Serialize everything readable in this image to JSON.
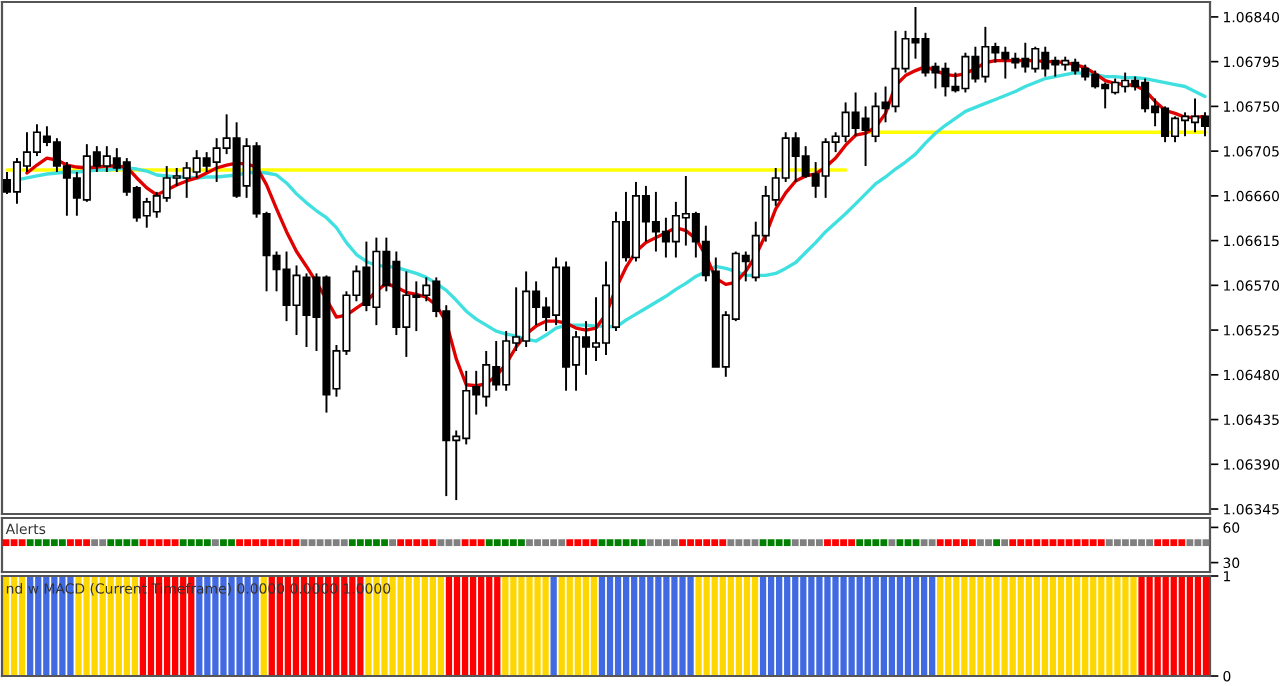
{
  "chart_data": [
    {
      "type": "candlestick",
      "tick_labels": "y",
      "categories": [
        null,
        null,
        null,
        null,
        null,
        null,
        null,
        null,
        null,
        null,
        null,
        null,
        null,
        null,
        null,
        null,
        null,
        null,
        null,
        null,
        null,
        null,
        null,
        null,
        null,
        null,
        null,
        null,
        null,
        null,
        null,
        null,
        null,
        null,
        null,
        null,
        null,
        null,
        null,
        null,
        null,
        null,
        null,
        null,
        null,
        null,
        null,
        null,
        null,
        null,
        null,
        null,
        null,
        null,
        null,
        null,
        null,
        null,
        null,
        null,
        null,
        null,
        null,
        null,
        null,
        null,
        null,
        null,
        null,
        null,
        null,
        null,
        null,
        null,
        null,
        null,
        null,
        null,
        null,
        null,
        null,
        null,
        null,
        null,
        null,
        null,
        null,
        null,
        null,
        null,
        null,
        null,
        null,
        null,
        null,
        null,
        null,
        null,
        null,
        null,
        null,
        null,
        null,
        null,
        null,
        null,
        null,
        null,
        null,
        null,
        null,
        null,
        null,
        null,
        null,
        null,
        null,
        null,
        null,
        null,
        null
      ],
      "ohlc": [
        [
          1.06676,
          1.06684,
          1.06662,
          1.06664
        ],
        [
          1.06664,
          1.06698,
          1.06652,
          1.06694
        ],
        [
          1.0669,
          1.06724,
          1.06684,
          1.06704
        ],
        [
          1.06704,
          1.06732,
          1.067,
          1.06724
        ],
        [
          1.0672,
          1.0673,
          1.0671,
          1.06714
        ],
        [
          1.06714,
          1.06718,
          1.06684,
          1.0669
        ],
        [
          1.0669,
          1.06694,
          1.0664,
          1.06678
        ],
        [
          1.06678,
          1.06684,
          1.0664,
          1.06658
        ],
        [
          1.06656,
          1.06712,
          1.06654,
          1.067
        ],
        [
          1.06704,
          1.0671,
          1.06684,
          1.0669
        ],
        [
          1.0669,
          1.0671,
          1.06684,
          1.067
        ],
        [
          1.06698,
          1.06708,
          1.06684,
          1.06688
        ],
        [
          1.06694,
          1.06698,
          1.0666,
          1.06664
        ],
        [
          1.06668,
          1.0667,
          1.06634,
          1.06638
        ],
        [
          1.0664,
          1.06658,
          1.06628,
          1.06654
        ],
        [
          1.06644,
          1.06664,
          1.06638,
          1.0666
        ],
        [
          1.06658,
          1.0669,
          1.06654,
          1.06678
        ],
        [
          1.06678,
          1.06688,
          1.0667,
          1.0668
        ],
        [
          1.06678,
          1.06694,
          1.06658,
          1.06688
        ],
        [
          1.06684,
          1.06706,
          1.06678,
          1.06698
        ],
        [
          1.06698,
          1.06704,
          1.06684,
          1.0669
        ],
        [
          1.06694,
          1.06718,
          1.06674,
          1.06708
        ],
        [
          1.06708,
          1.06742,
          1.06702,
          1.06718
        ],
        [
          1.06718,
          1.06734,
          1.06658,
          1.0666
        ],
        [
          1.0667,
          1.06718,
          1.06658,
          1.0671
        ],
        [
          1.0671,
          1.06714,
          1.06638,
          1.06642
        ],
        [
          1.06642,
          1.06644,
          1.06564,
          1.066
        ],
        [
          1.066,
          1.06604,
          1.06564,
          1.06586
        ],
        [
          1.06586,
          1.06604,
          1.06534,
          1.0655
        ],
        [
          1.0655,
          1.0659,
          1.0652,
          1.0658
        ],
        [
          1.06578,
          1.06582,
          1.06508,
          1.0654
        ],
        [
          1.06578,
          1.06582,
          1.06504,
          1.06538
        ],
        [
          1.06578,
          1.0658,
          1.06442,
          1.0646
        ],
        [
          1.06466,
          1.0651,
          1.06458,
          1.06504
        ],
        [
          1.06504,
          1.06564,
          1.065,
          1.0656
        ],
        [
          1.0656,
          1.0659,
          1.06554,
          1.06584
        ],
        [
          1.06588,
          1.06614,
          1.06544,
          1.0655
        ],
        [
          1.06548,
          1.06618,
          1.0653,
          1.06604
        ],
        [
          1.06604,
          1.06618,
          1.06564,
          1.0657
        ],
        [
          1.06594,
          1.06604,
          1.0652,
          1.06528
        ],
        [
          1.06528,
          1.06584,
          1.06498,
          1.0656
        ],
        [
          1.0656,
          1.06574,
          1.06524,
          1.06558
        ],
        [
          1.0656,
          1.06578,
          1.06554,
          1.0657
        ],
        [
          1.06574,
          1.06578,
          1.06538,
          1.06544
        ],
        [
          1.06544,
          1.0655,
          1.06358,
          1.06414
        ],
        [
          1.06414,
          1.06424,
          1.06354,
          1.06418
        ],
        [
          1.06416,
          1.06484,
          1.0641,
          1.06464
        ],
        [
          1.06468,
          1.06484,
          1.0644,
          1.0646
        ],
        [
          1.06458,
          1.06504,
          1.06448,
          1.0649
        ],
        [
          1.06488,
          1.06514,
          1.06464,
          1.0647
        ],
        [
          1.0647,
          1.06524,
          1.06464,
          1.06514
        ],
        [
          1.06512,
          1.06568,
          1.06504,
          1.06518
        ],
        [
          1.06514,
          1.06584,
          1.06508,
          1.06564
        ],
        [
          1.06564,
          1.06574,
          1.0653,
          1.06548
        ],
        [
          1.06548,
          1.06558,
          1.06524,
          1.06538
        ],
        [
          1.0654,
          1.06598,
          1.0653,
          1.06588
        ],
        [
          1.06588,
          1.06594,
          1.06464,
          1.06488
        ],
        [
          1.0649,
          1.06524,
          1.06464,
          1.06518
        ],
        [
          1.06518,
          1.06534,
          1.0648,
          1.06508
        ],
        [
          1.06508,
          1.06558,
          1.06494,
          1.06512
        ],
        [
          1.06512,
          1.06594,
          1.065,
          1.0657
        ],
        [
          1.06528,
          1.06644,
          1.06524,
          1.06634
        ],
        [
          1.06634,
          1.06664,
          1.06594,
          1.06598
        ],
        [
          1.06598,
          1.06674,
          1.06594,
          1.0666
        ],
        [
          1.0666,
          1.0667,
          1.06614,
          1.06634
        ],
        [
          1.06634,
          1.06664,
          1.06604,
          1.06624
        ],
        [
          1.06624,
          1.06638,
          1.06598,
          1.06614
        ],
        [
          1.06614,
          1.06654,
          1.06598,
          1.0664
        ],
        [
          1.06638,
          1.0668,
          1.0661,
          1.06642
        ],
        [
          1.06642,
          1.06644,
          1.06598,
          1.06614
        ],
        [
          1.06614,
          1.0663,
          1.06574,
          1.0658
        ],
        [
          1.06584,
          1.06598,
          1.06488,
          1.06488
        ],
        [
          1.06488,
          1.06544,
          1.06478,
          1.0654
        ],
        [
          1.06536,
          1.06604,
          1.06534,
          1.06602
        ],
        [
          1.066,
          1.06604,
          1.06574,
          1.06594
        ],
        [
          1.06578,
          1.06634,
          1.06574,
          1.0662
        ],
        [
          1.0662,
          1.0667,
          1.06614,
          1.0666
        ],
        [
          1.06656,
          1.06688,
          1.0665,
          1.06678
        ],
        [
          1.06678,
          1.06724,
          1.06674,
          1.06718
        ],
        [
          1.06718,
          1.06724,
          1.06674,
          1.067
        ],
        [
          1.067,
          1.0671,
          1.06678,
          1.0668
        ],
        [
          1.06682,
          1.06694,
          1.06658,
          1.0667
        ],
        [
          1.0668,
          1.06718,
          1.06658,
          1.06714
        ],
        [
          1.06714,
          1.06724,
          1.06704,
          1.0672
        ],
        [
          1.0672,
          1.06754,
          1.06714,
          1.06744
        ],
        [
          1.06744,
          1.06764,
          1.0672,
          1.06728
        ],
        [
          1.06738,
          1.0675,
          1.0669,
          1.06726
        ],
        [
          1.0672,
          1.06764,
          1.06714,
          1.0675
        ],
        [
          1.06754,
          1.0677,
          1.06734,
          1.06748
        ],
        [
          1.0675,
          1.06826,
          1.06744,
          1.06788
        ],
        [
          1.06788,
          1.06826,
          1.06784,
          1.06818
        ],
        [
          1.06818,
          1.0685,
          1.06798,
          1.06814
        ],
        [
          1.06818,
          1.06824,
          1.0678,
          1.06784
        ],
        [
          1.0679,
          1.06794,
          1.06768,
          1.06784
        ],
        [
          1.06788,
          1.06794,
          1.0676,
          1.0677
        ],
        [
          1.0677,
          1.06784,
          1.06764,
          1.06766
        ],
        [
          1.06768,
          1.06804,
          1.06764,
          1.068
        ],
        [
          1.068,
          1.0681,
          1.06774,
          1.06778
        ],
        [
          1.0678,
          1.0683,
          1.06774,
          1.0681
        ],
        [
          1.0681,
          1.06814,
          1.06794,
          1.06804
        ],
        [
          1.06804,
          1.0681,
          1.06778,
          1.06798
        ],
        [
          1.06798,
          1.06804,
          1.06788,
          1.06794
        ],
        [
          1.06798,
          1.06814,
          1.06784,
          1.0679
        ],
        [
          1.06788,
          1.0681,
          1.06784,
          1.06808
        ],
        [
          1.06804,
          1.0681,
          1.0678,
          1.06788
        ],
        [
          1.06796,
          1.068,
          1.0678,
          1.06792
        ],
        [
          1.06792,
          1.068,
          1.06786,
          1.06796
        ],
        [
          1.06794,
          1.06798,
          1.06782,
          1.06786
        ],
        [
          1.06788,
          1.06792,
          1.06776,
          1.0678
        ],
        [
          1.06782,
          1.06786,
          1.06768,
          1.0677
        ],
        [
          1.06772,
          1.06774,
          1.06748,
          1.06768
        ],
        [
          1.06764,
          1.06778,
          1.06762,
          1.06774
        ],
        [
          1.0677,
          1.06784,
          1.06764,
          1.06776
        ],
        [
          1.06776,
          1.0678,
          1.06766,
          1.0677
        ],
        [
          1.06774,
          1.06778,
          1.06744,
          1.06748
        ],
        [
          1.0675,
          1.06758,
          1.0673,
          1.06744
        ],
        [
          1.06748,
          1.0675,
          1.06714,
          1.0672
        ],
        [
          1.0672,
          1.0674,
          1.06714,
          1.06738
        ],
        [
          1.06736,
          1.06744,
          1.0672,
          1.0674
        ],
        [
          1.06734,
          1.06758,
          1.06724,
          1.0674
        ],
        [
          1.0674,
          1.06744,
          1.0672,
          1.0673
        ]
      ],
      "series": [
        {
          "type": "line",
          "color": "#ffff00",
          "values": [
            1.06686,
            1.06686,
            1.06686,
            1.06686,
            1.06686,
            1.06686,
            1.06686,
            1.06686,
            1.06686,
            1.06686,
            1.06686,
            1.06686,
            1.06686,
            1.06686,
            1.06686,
            1.06686,
            1.06686,
            1.06686,
            1.06686,
            1.06686,
            1.06686,
            1.06686,
            1.06686,
            1.06686,
            1.06686,
            1.06686,
            1.06686,
            1.06686,
            1.06686,
            1.06686,
            1.06686,
            1.06686,
            1.06686,
            1.06686,
            1.06686,
            1.06686,
            1.06686,
            1.06686,
            1.06686,
            1.06686,
            1.06686,
            1.06686,
            1.06686,
            1.06686,
            1.06686,
            1.06686,
            1.06686,
            1.06686,
            1.06686,
            1.06686,
            1.06686,
            1.06686,
            1.06686,
            1.06686,
            1.06686,
            1.06686,
            1.06686,
            1.06686,
            1.06686,
            1.06686,
            1.06686,
            1.06686,
            1.06686,
            1.06686,
            1.06686,
            1.06686,
            1.06686,
            1.06686,
            1.06686,
            1.06686,
            1.06686,
            1.06686,
            1.06686,
            1.06686,
            1.06686,
            1.06686,
            1.06686,
            1.06686,
            1.06686,
            1.06686,
            1.06686,
            1.06686,
            1.06686,
            1.06686,
            1.06686,
            null,
            null,
            null,
            null,
            null,
            null,
            null,
            null,
            null,
            null,
            null,
            null,
            null,
            null,
            null,
            null,
            null,
            null,
            null,
            null,
            null,
            null,
            null,
            null,
            null,
            null,
            null,
            null,
            null,
            null,
            null,
            null,
            null,
            null,
            null,
            null
          ]
        },
        {
          "type": "line",
          "color": "#ffff00",
          "values": [
            null,
            null,
            null,
            null,
            null,
            null,
            null,
            null,
            null,
            null,
            null,
            null,
            null,
            null,
            null,
            null,
            null,
            null,
            null,
            null,
            null,
            null,
            null,
            null,
            null,
            null,
            null,
            null,
            null,
            null,
            null,
            null,
            null,
            null,
            null,
            null,
            null,
            null,
            null,
            null,
            null,
            null,
            null,
            null,
            null,
            null,
            null,
            null,
            null,
            null,
            null,
            null,
            null,
            null,
            null,
            null,
            null,
            null,
            null,
            null,
            null,
            null,
            null,
            null,
            null,
            null,
            null,
            null,
            null,
            null,
            null,
            null,
            null,
            null,
            null,
            null,
            null,
            null,
            null,
            null,
            null,
            null,
            null,
            null,
            null,
            null,
            1.06724,
            1.06724,
            1.06724,
            1.06724,
            1.06724,
            1.06724,
            1.06724,
            1.06724,
            1.06724,
            1.06724,
            1.06724,
            1.06724,
            1.06724,
            1.06724,
            1.06724,
            1.06724,
            1.06724,
            1.06724,
            1.06724,
            1.06724,
            1.06724,
            1.06724,
            1.06724,
            1.06724,
            1.06724,
            1.06724,
            1.06724,
            1.06724,
            1.06724,
            1.06724,
            1.06724,
            1.06724,
            1.06724,
            1.06724,
            1.06724
          ]
        },
        {
          "type": "line",
          "color": "#40e0e0",
          "values": [
            null,
            1.06676,
            1.06678,
            1.0668,
            1.06682,
            1.06683,
            1.06684,
            1.06684,
            1.06685,
            1.06686,
            1.06686,
            1.06687,
            1.06688,
            1.06687,
            1.06685,
            1.06681,
            1.0668,
            1.06679,
            1.06679,
            1.06678,
            1.06679,
            1.06679,
            1.0668,
            1.06681,
            1.06683,
            1.06684,
            1.06683,
            1.06681,
            1.06673,
            1.06662,
            1.06653,
            1.06645,
            1.06638,
            1.06628,
            1.06613,
            1.06601,
            1.06594,
            1.0659,
            1.06589,
            1.06588,
            1.06585,
            1.06582,
            1.06578,
            1.06572,
            1.06565,
            1.06555,
            1.06544,
            1.06536,
            1.0653,
            1.06524,
            1.06521,
            1.06519,
            1.06516,
            1.06514,
            1.0652,
            1.06527,
            1.0653,
            1.0653,
            1.0653,
            1.06529,
            1.06529,
            1.06528,
            1.06535,
            1.06541,
            1.06547,
            1.06553,
            1.06559,
            1.06566,
            1.06572,
            1.06579,
            1.06584,
            1.06589,
            1.06587,
            1.06584,
            1.0658,
            1.0658,
            1.0658,
            1.06582,
            1.06587,
            1.06593,
            1.06603,
            1.06613,
            1.06624,
            1.06633,
            1.06642,
            1.06652,
            1.06662,
            1.06672,
            1.06679,
            1.06687,
            1.06694,
            1.06702,
            1.06713,
            1.06723,
            1.06731,
            1.06738,
            1.06745,
            1.06749,
            1.06753,
            1.06757,
            1.06761,
            1.06765,
            1.0677,
            1.06774,
            1.06778,
            1.0678,
            1.06782,
            1.06784,
            1.06783,
            1.06782,
            1.0678,
            1.0678,
            1.06779,
            1.06779,
            1.06778,
            1.06776,
            1.06774,
            1.06772,
            1.0677,
            1.06765,
            1.0676
          ]
        },
        {
          "type": "line",
          "color": "#e00000",
          "values": [
            null,
            null,
            1.06683,
            1.06691,
            1.06698,
            1.06696,
            1.06691,
            1.06689,
            1.06688,
            1.06689,
            1.0669,
            1.0669,
            1.06689,
            1.06678,
            1.06668,
            1.06661,
            1.06666,
            1.06671,
            1.06675,
            1.06678,
            1.06683,
            1.06688,
            1.06691,
            1.06693,
            1.06692,
            1.06689,
            1.06671,
            1.06647,
            1.06624,
            1.06604,
            1.06589,
            1.06573,
            1.06556,
            1.06538,
            1.0654,
            1.06547,
            1.06554,
            1.06564,
            1.06572,
            1.06568,
            1.06563,
            1.06561,
            1.06558,
            1.0655,
            1.06533,
            1.06496,
            1.0647,
            1.06469,
            1.06471,
            1.06479,
            1.06491,
            1.06508,
            1.06521,
            1.06529,
            1.06534,
            1.06534,
            1.06532,
            1.06527,
            1.06525,
            1.06527,
            1.06541,
            1.06567,
            1.06588,
            1.06604,
            1.06613,
            1.06618,
            1.06623,
            1.06628,
            1.06625,
            1.06617,
            1.066,
            1.06577,
            1.06571,
            1.06573,
            1.06584,
            1.066,
            1.06621,
            1.06647,
            1.06663,
            1.06675,
            1.0668,
            1.06682,
            1.06689,
            1.06698,
            1.06711,
            1.06721,
            1.06723,
            1.06729,
            1.06743,
            1.06771,
            1.06781,
            1.06786,
            1.0679,
            1.06786,
            1.06782,
            1.06781,
            1.06783,
            1.06788,
            1.06794,
            1.06796,
            1.06796,
            1.06796,
            1.06796,
            1.06796,
            1.06795,
            1.06795,
            1.06794,
            1.06792,
            1.06789,
            1.06783,
            1.06776,
            1.06773,
            1.06772,
            1.06771,
            1.06766,
            1.06755,
            1.06746,
            1.06743,
            1.06739,
            1.06739,
            1.0674
          ]
        }
      ],
      "ylim": [
        1.0634,
        1.06855
      ],
      "yticks": [
        1.06345,
        {
          "value": 1.0639,
          "label": "1.06390"
        },
        1.06435,
        {
          "value": 1.0648,
          "label": "1.06480"
        },
        1.06525,
        {
          "value": 1.0657,
          "label": "1.06570"
        },
        1.06615,
        {
          "value": 1.0666,
          "label": "1.06660"
        },
        1.06705,
        {
          "value": 1.0675,
          "label": "1.06750"
        },
        1.06795,
        {
          "value": 1.0684,
          "label": "1.06840"
        }
      ]
    },
    {
      "type": "scatter",
      "title": "Alerts",
      "marker": "square",
      "tick_labels": "y",
      "categories": [
        null,
        null,
        null,
        null,
        null,
        null,
        null,
        null,
        null,
        null,
        null,
        null,
        null,
        null,
        null,
        null,
        null,
        null,
        null,
        null,
        null,
        null,
        null,
        null,
        null,
        null,
        null,
        null,
        null,
        null,
        null,
        null,
        null,
        null,
        null,
        null,
        null,
        null,
        null,
        null,
        null,
        null,
        null,
        null,
        null,
        null,
        null,
        null,
        null,
        null,
        null,
        null,
        null,
        null,
        null,
        null,
        null,
        null,
        null,
        null,
        null,
        null,
        null,
        null,
        null,
        null,
        null,
        null,
        null,
        null,
        null,
        null,
        null,
        null,
        null,
        null,
        null,
        null,
        null,
        null,
        null,
        null,
        null,
        null,
        null,
        null,
        null,
        null,
        null,
        null,
        null,
        null,
        null,
        null,
        null,
        null,
        null,
        null,
        null,
        null,
        null,
        null,
        null,
        null,
        null,
        null,
        null,
        null,
        null,
        null,
        null,
        null,
        null,
        null,
        null,
        null,
        null,
        null,
        null,
        null,
        null,
        null,
        null,
        null,
        null,
        null,
        null,
        null,
        null,
        null,
        null,
        null,
        null,
        null,
        null,
        null,
        null,
        null,
        null,
        null,
        null,
        null,
        null,
        null,
        null,
        null,
        null,
        null,
        null,
        null
      ],
      "values": [
        47,
        47,
        47,
        47,
        47,
        47,
        47,
        47,
        47,
        47,
        47,
        47,
        47,
        47,
        47,
        47,
        47,
        47,
        47,
        47,
        47,
        47,
        47,
        47,
        47,
        47,
        47,
        47,
        47,
        47,
        47,
        47,
        47,
        47,
        47,
        47,
        47,
        47,
        47,
        47,
        47,
        47,
        47,
        47,
        47,
        47,
        47,
        47,
        47,
        47,
        47,
        47,
        47,
        47,
        47,
        47,
        47,
        47,
        47,
        47,
        47,
        47,
        47,
        47,
        47,
        47,
        47,
        47,
        47,
        47,
        47,
        47,
        47,
        47,
        47,
        47,
        47,
        47,
        47,
        47,
        47,
        47,
        47,
        47,
        47,
        47,
        47,
        47,
        47,
        47,
        47,
        47,
        47,
        47,
        47,
        47,
        47,
        47,
        47,
        47,
        47,
        47,
        47,
        47,
        47,
        47,
        47,
        47,
        47,
        47,
        47,
        47,
        47,
        47,
        47,
        47,
        47,
        47,
        47,
        47,
        47,
        47,
        47,
        47,
        47,
        47,
        47,
        47,
        47,
        47,
        47,
        47,
        47,
        47,
        47,
        47,
        47,
        47,
        47,
        47,
        47,
        47,
        47,
        47,
        47,
        47,
        47,
        47,
        47,
        47
      ],
      "colors": [
        "#ff0000",
        "#ff0000",
        "#ff0000",
        "#008000",
        "#008000",
        "#008000",
        "#008000",
        "#008000",
        "#ff0000",
        "#ff0000",
        "#ff0000",
        "#808080",
        "#808080",
        "#008000",
        "#008000",
        "#008000",
        "#008000",
        "#ff0000",
        "#ff0000",
        "#ff0000",
        "#ff0000",
        "#ff0000",
        "#008000",
        "#008000",
        "#008000",
        "#008000",
        "#808080",
        "#008000",
        "#008000",
        "#ff0000",
        "#ff0000",
        "#ff0000",
        "#ff0000",
        "#ff0000",
        "#ff0000",
        "#ff0000",
        "#ff0000",
        "#808080",
        "#808080",
        "#808080",
        "#808080",
        "#808080",
        "#808080",
        "#008000",
        "#008000",
        "#008000",
        "#008000",
        "#008000",
        "#808080",
        "#ff0000",
        "#ff0000",
        "#ff0000",
        "#ff0000",
        "#ff0000",
        "#808080",
        "#808080",
        "#808080",
        "#ff0000",
        "#ff0000",
        "#ff0000",
        "#008000",
        "#008000",
        "#008000",
        "#008000",
        "#008000",
        "#808080",
        "#808080",
        "#808080",
        "#808080",
        "#808080",
        "#ff0000",
        "#ff0000",
        "#ff0000",
        "#ff0000",
        "#008000",
        "#008000",
        "#008000",
        "#008000",
        "#008000",
        "#008000",
        "#808080",
        "#808080",
        "#808080",
        "#808080",
        "#ff0000",
        "#ff0000",
        "#ff0000",
        "#ff0000",
        "#ff0000",
        "#ff0000",
        "#808080",
        "#808080",
        "#808080",
        "#808080",
        "#008000",
        "#008000",
        "#008000",
        "#008000",
        "#808080",
        "#808080",
        "#808080",
        "#808080",
        "#ff0000",
        "#ff0000",
        "#ff0000",
        "#ff0000",
        "#008000",
        "#008000",
        "#008000",
        "#008000",
        "#808080",
        "#008000",
        "#008000",
        "#008000",
        "#808080",
        "#808080",
        "#ff0000",
        "#ff0000",
        "#ff0000",
        "#ff0000",
        "#ff0000",
        "#808080",
        "#808080",
        "#008000",
        "#808080",
        "#ff0000",
        "#ff0000",
        "#ff0000",
        "#ff0000",
        "#ff0000",
        "#ff0000",
        "#ff0000",
        "#ff0000",
        "#ff0000",
        "#ff0000",
        "#ff0000",
        "#ff0000",
        "#808080",
        "#808080",
        "#808080",
        "#808080",
        "#808080",
        "#808080",
        "#ff0000",
        "#ff0000",
        "#ff0000",
        "#ff0000",
        "#808080",
        "#808080",
        "#808080"
      ],
      "ylim": [
        22,
        68
      ],
      "yticks": [
        30,
        60
      ]
    },
    {
      "type": "bar",
      "tick_labels": "y",
      "annotations": [
        "nd w MACD (Current Timeframe) 0.0000 0.0000 1.0000"
      ],
      "categories": [
        null,
        null,
        null,
        null,
        null,
        null,
        null,
        null,
        null,
        null,
        null,
        null,
        null,
        null,
        null,
        null,
        null,
        null,
        null,
        null,
        null,
        null,
        null,
        null,
        null,
        null,
        null,
        null,
        null,
        null,
        null,
        null,
        null,
        null,
        null,
        null,
        null,
        null,
        null,
        null,
        null,
        null,
        null,
        null,
        null,
        null,
        null,
        null,
        null,
        null,
        null,
        null,
        null,
        null,
        null,
        null,
        null,
        null,
        null,
        null,
        null,
        null,
        null,
        null,
        null,
        null,
        null,
        null,
        null,
        null,
        null,
        null,
        null,
        null,
        null,
        null,
        null,
        null,
        null,
        null,
        null,
        null,
        null,
        null,
        null,
        null,
        null,
        null,
        null,
        null,
        null,
        null,
        null,
        null,
        null,
        null,
        null,
        null,
        null,
        null,
        null,
        null,
        null,
        null,
        null,
        null,
        null,
        null,
        null,
        null,
        null,
        null,
        null,
        null,
        null,
        null,
        null,
        null,
        null,
        null,
        null,
        null,
        null,
        null,
        null,
        null,
        null,
        null,
        null,
        null,
        null,
        null,
        null,
        null,
        null,
        null,
        null,
        null,
        null,
        null,
        null,
        null,
        null,
        null,
        null,
        null,
        null,
        null,
        null,
        null
      ],
      "values": [
        1,
        1,
        1,
        1,
        1,
        1,
        1,
        1,
        1,
        1,
        1,
        1,
        1,
        1,
        1,
        1,
        1,
        1,
        1,
        1,
        1,
        1,
        1,
        1,
        1,
        1,
        1,
        1,
        1,
        1,
        1,
        1,
        1,
        1,
        1,
        1,
        1,
        1,
        1,
        1,
        1,
        1,
        1,
        1,
        1,
        1,
        1,
        1,
        1,
        1,
        1,
        1,
        1,
        1,
        1,
        1,
        1,
        1,
        1,
        1,
        1,
        1,
        1,
        1,
        1,
        1,
        1,
        1,
        1,
        1,
        1,
        1,
        1,
        1,
        1,
        1,
        1,
        1,
        1,
        1,
        1,
        1,
        1,
        1,
        1,
        1,
        1,
        1,
        1,
        1,
        1,
        1,
        1,
        1,
        1,
        1,
        1,
        1,
        1,
        1,
        1,
        1,
        1,
        1,
        1,
        1,
        1,
        1,
        1,
        1,
        1,
        1,
        1,
        1,
        1,
        1,
        1,
        1,
        1,
        1,
        1,
        1,
        1,
        1,
        1,
        1,
        1,
        1,
        1,
        1,
        1,
        1,
        1,
        1,
        1,
        1,
        1,
        1,
        1,
        1,
        1,
        1,
        1,
        1,
        1,
        1,
        1,
        1,
        1,
        1
      ],
      "colors": [
        "#ffd700",
        "#ffd700",
        "#ffd700",
        "#4169e1",
        "#4169e1",
        "#4169e1",
        "#4169e1",
        "#4169e1",
        "#4169e1",
        "#ffd700",
        "#ffd700",
        "#ffd700",
        "#ffd700",
        "#ffd700",
        "#ffd700",
        "#ffd700",
        "#ffd700",
        "#ff0000",
        "#ff0000",
        "#ff0000",
        "#ff0000",
        "#ff0000",
        "#ff0000",
        "#ff0000",
        "#4169e1",
        "#4169e1",
        "#4169e1",
        "#4169e1",
        "#4169e1",
        "#4169e1",
        "#4169e1",
        "#4169e1",
        "#ffd700",
        "#ff0000",
        "#ff0000",
        "#ff0000",
        "#ff0000",
        "#ff0000",
        "#ff0000",
        "#ff0000",
        "#ff0000",
        "#ff0000",
        "#ff0000",
        "#ff0000",
        "#ff0000",
        "#ffd700",
        "#ffd700",
        "#ffd700",
        "#ffd700",
        "#ffd700",
        "#ffd700",
        "#ffd700",
        "#ffd700",
        "#ffd700",
        "#ffd700",
        "#ff0000",
        "#ff0000",
        "#ff0000",
        "#ff0000",
        "#ff0000",
        "#ff0000",
        "#ff0000",
        "#ffd700",
        "#ffd700",
        "#ffd700",
        "#ffd700",
        "#ffd700",
        "#ffd700",
        "#4169e1",
        "#ffd700",
        "#ffd700",
        "#ffd700",
        "#ffd700",
        "#ffd700",
        "#4169e1",
        "#4169e1",
        "#4169e1",
        "#4169e1",
        "#4169e1",
        "#4169e1",
        "#4169e1",
        "#4169e1",
        "#4169e1",
        "#4169e1",
        "#4169e1",
        "#4169e1",
        "#ffd700",
        "#ffd700",
        "#ffd700",
        "#ffd700",
        "#ffd700",
        "#ffd700",
        "#ffd700",
        "#ffd700",
        "#4169e1",
        "#4169e1",
        "#4169e1",
        "#4169e1",
        "#4169e1",
        "#4169e1",
        "#4169e1",
        "#4169e1",
        "#4169e1",
        "#4169e1",
        "#4169e1",
        "#4169e1",
        "#4169e1",
        "#4169e1",
        "#4169e1",
        "#4169e1",
        "#4169e1",
        "#4169e1",
        "#4169e1",
        "#4169e1",
        "#4169e1",
        "#4169e1",
        "#ffd700",
        "#ffd700",
        "#ffd700",
        "#ffd700",
        "#ffd700",
        "#ffd700",
        "#ffd700",
        "#ffd700",
        "#ffd700",
        "#ffd700",
        "#ffd700",
        "#ffd700",
        "#ffd700",
        "#ffd700",
        "#ffd700",
        "#ffd700",
        "#ffd700",
        "#ffd700",
        "#ffd700",
        "#ffd700",
        "#ffd700",
        "#ffd700",
        "#ffd700",
        "#ffd700",
        "#ffd700",
        "#ff0000",
        "#ff0000",
        "#ff0000",
        "#ff0000",
        "#ff0000",
        "#ff0000",
        "#ff0000",
        "#ff0000",
        "#ff0000"
      ],
      "ylim": [
        0,
        1
      ],
      "yticks": [
        0,
        1
      ]
    }
  ]
}
